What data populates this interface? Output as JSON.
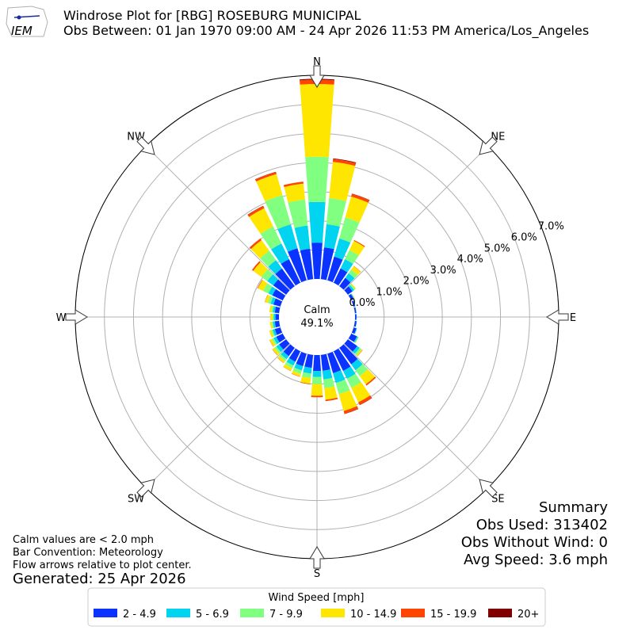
{
  "header": {
    "title": "Windrose Plot for [RBG] ROSEBURG MUNICIPAL",
    "subtitle": "Obs Between: 01 Jan 1970 09:00 AM - 24 Apr 2026 11:53 PM America/Los_Angeles",
    "logo_text": "IEM"
  },
  "directions": [
    {
      "key": "n",
      "label": "N"
    },
    {
      "key": "ne",
      "label": "NE"
    },
    {
      "key": "e",
      "label": "E"
    },
    {
      "key": "se",
      "label": "SE"
    },
    {
      "key": "s",
      "label": "S"
    },
    {
      "key": "sw",
      "label": "SW"
    },
    {
      "key": "w",
      "label": "W"
    },
    {
      "key": "nw",
      "label": "NW"
    }
  ],
  "calm": {
    "label": "Calm",
    "value": "49.1%"
  },
  "summary": {
    "title": "Summary",
    "obs_used": "Obs Used: 313402",
    "obs_without_wind": "Obs Without Wind: 0",
    "avg_speed": "Avg Speed: 3.6 mph"
  },
  "notes": {
    "calm_note": "Calm values are < 2.0 mph",
    "bar_convention": "Bar Convention: Meteorology",
    "flow_note": "Flow arrows relative to plot center.",
    "generated": "Generated: 25 Apr 2026"
  },
  "legend": {
    "title": "Wind Speed [mph]"
  },
  "chart_data": {
    "type": "windrose",
    "radial_tick_labels": [
      "0.0%",
      "1.0%",
      "2.0%",
      "3.0%",
      "4.0%",
      "5.0%",
      "6.0%",
      "7.0%"
    ],
    "radial_ticks": [
      0,
      1,
      2,
      3,
      4,
      5,
      6,
      7
    ],
    "rmax": 7.0,
    "grid": true,
    "legend_placement": "bottom-center",
    "bins": [
      {
        "label": "2 - 4.9",
        "color": "#0a33ff"
      },
      {
        "label": "5 - 6.9",
        "color": "#00d4f0"
      },
      {
        "label": "7 - 9.9",
        "color": "#80ff80"
      },
      {
        "label": "10 - 14.9",
        "color": "#ffe600"
      },
      {
        "label": "15 - 19.9",
        "color": "#ff4500"
      },
      {
        "label": "20+",
        "color": "#800000"
      }
    ],
    "sector_directions_deg": [
      0,
      10,
      20,
      30,
      40,
      50,
      60,
      70,
      80,
      90,
      100,
      110,
      120,
      130,
      140,
      150,
      160,
      170,
      180,
      190,
      200,
      210,
      220,
      230,
      240,
      250,
      260,
      270,
      280,
      290,
      300,
      310,
      320,
      330,
      340,
      350
    ],
    "cumulative_percent": [
      [
        1.25,
        2.65,
        4.2,
        6.7,
        6.85,
        6.88
      ],
      [
        1.1,
        1.9,
        2.8,
        4.05,
        4.15,
        4.17
      ],
      [
        0.85,
        1.5,
        2.25,
        3.0,
        3.09,
        3.1
      ],
      [
        0.55,
        0.9,
        1.25,
        1.6,
        1.63,
        1.63
      ],
      [
        0.35,
        0.55,
        0.7,
        0.85,
        0.86,
        0.86
      ],
      [
        0.2,
        0.27,
        0.32,
        0.35,
        0.35,
        0.35
      ],
      [
        0.1,
        0.12,
        0.13,
        0.14,
        0.14,
        0.14
      ],
      [
        0.06,
        0.07,
        0.07,
        0.07,
        0.07,
        0.07
      ],
      [
        0.05,
        0.06,
        0.06,
        0.06,
        0.06,
        0.06
      ],
      [
        0.05,
        0.06,
        0.06,
        0.06,
        0.06,
        0.06
      ],
      [
        0.06,
        0.07,
        0.07,
        0.07,
        0.07,
        0.07
      ],
      [
        0.1,
        0.12,
        0.13,
        0.13,
        0.13,
        0.13
      ],
      [
        0.22,
        0.26,
        0.28,
        0.29,
        0.29,
        0.29
      ],
      [
        0.4,
        0.5,
        0.58,
        0.62,
        0.63,
        0.63
      ],
      [
        0.7,
        0.95,
        1.2,
        1.55,
        1.6,
        1.6
      ],
      [
        0.75,
        1.05,
        1.4,
        1.95,
        2.05,
        2.06
      ],
      [
        0.7,
        1.05,
        1.45,
        2.05,
        2.15,
        2.16
      ],
      [
        0.55,
        0.85,
        1.15,
        1.55,
        1.6,
        1.6
      ],
      [
        0.55,
        0.75,
        1.0,
        1.4,
        1.45,
        1.45
      ],
      [
        0.45,
        0.65,
        0.8,
        1.0,
        1.02,
        1.02
      ],
      [
        0.45,
        0.6,
        0.72,
        0.82,
        0.83,
        0.83
      ],
      [
        0.4,
        0.55,
        0.65,
        0.75,
        0.76,
        0.76
      ],
      [
        0.35,
        0.48,
        0.56,
        0.64,
        0.65,
        0.65
      ],
      [
        0.3,
        0.42,
        0.5,
        0.58,
        0.59,
        0.59
      ],
      [
        0.25,
        0.35,
        0.42,
        0.5,
        0.51,
        0.51
      ],
      [
        0.2,
        0.28,
        0.33,
        0.4,
        0.4,
        0.4
      ],
      [
        0.15,
        0.22,
        0.26,
        0.32,
        0.32,
        0.32
      ],
      [
        0.12,
        0.18,
        0.22,
        0.3,
        0.3,
        0.3
      ],
      [
        0.15,
        0.22,
        0.27,
        0.34,
        0.34,
        0.34
      ],
      [
        0.25,
        0.35,
        0.45,
        0.55,
        0.56,
        0.56
      ],
      [
        0.4,
        0.55,
        0.75,
        0.95,
        0.97,
        0.97
      ],
      [
        0.55,
        0.8,
        1.05,
        1.4,
        1.45,
        1.45
      ],
      [
        0.75,
        1.1,
        1.5,
        1.95,
        2.02,
        2.02
      ],
      [
        0.9,
        1.5,
        2.15,
        2.85,
        2.93,
        2.94
      ],
      [
        1.15,
        2.0,
        3.05,
        3.8,
        3.87,
        3.88
      ],
      [
        1.05,
        1.85,
        2.75,
        3.3,
        3.37,
        3.37
      ]
    ]
  }
}
